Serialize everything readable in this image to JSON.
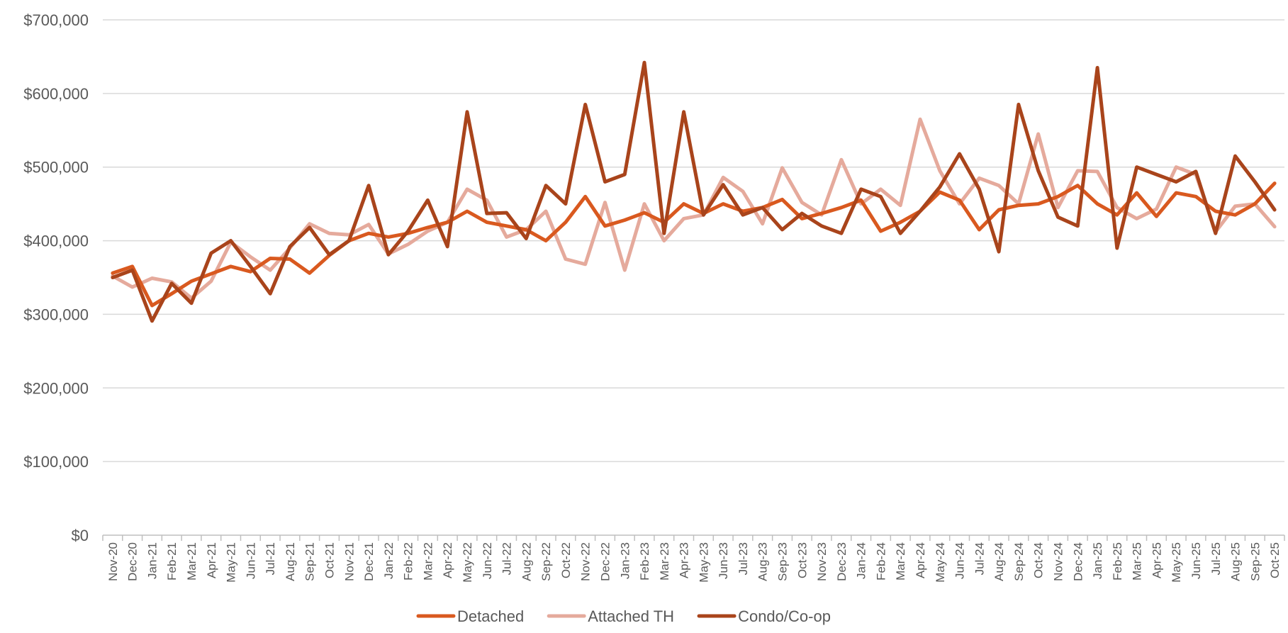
{
  "chart_data": {
    "type": "line",
    "title": "",
    "xlabel": "",
    "ylabel": "",
    "ylim": [
      0,
      700000
    ],
    "yticks": [
      0,
      100000,
      200000,
      300000,
      400000,
      500000,
      600000,
      700000
    ],
    "ytick_labels": [
      "$0",
      "$100,000",
      "$200,000",
      "$300,000",
      "$400,000",
      "$500,000",
      "$600,000",
      "$700,000"
    ],
    "grid": true,
    "legend_position": "bottom",
    "categories": [
      "Nov-20",
      "Dec-20",
      "Jan-21",
      "Feb-21",
      "Mar-21",
      "Apr-21",
      "May-21",
      "Jun-21",
      "Jul-21",
      "Aug-21",
      "Sep-21",
      "Oct-21",
      "Nov-21",
      "Dec-21",
      "Jan-22",
      "Feb-22",
      "Mar-22",
      "Apr-22",
      "May-22",
      "Jun-22",
      "Jul-22",
      "Aug-22",
      "Sep-22",
      "Oct-22",
      "Nov-22",
      "Dec-22",
      "Jan-23",
      "Feb-23",
      "Mar-23",
      "Apr-23",
      "May-23",
      "Jun-23",
      "Jul-23",
      "Aug-23",
      "Sep-23",
      "Oct-23",
      "Nov-23",
      "Dec-23",
      "Jan-24",
      "Feb-24",
      "Mar-24",
      "Apr-24",
      "May-24",
      "Jun-24",
      "Jul-24",
      "Aug-24",
      "Sep-24",
      "Oct-24",
      "Nov-24",
      "Dec-24",
      "Jan-25",
      "Feb-25",
      "Mar-25",
      "Apr-25",
      "May-25",
      "Jun-25",
      "Jul-25",
      "Aug-25",
      "Sep-25",
      "Oct-25"
    ],
    "series": [
      {
        "name": "Detached",
        "color": "#d9591f",
        "values": [
          356000,
          365000,
          312000,
          328000,
          345000,
          355000,
          365000,
          358000,
          376000,
          375000,
          356000,
          380000,
          400000,
          410000,
          405000,
          410000,
          418000,
          425000,
          440000,
          425000,
          420000,
          415000,
          400000,
          425000,
          460000,
          420000,
          428000,
          438000,
          425000,
          450000,
          437000,
          450000,
          440000,
          445000,
          456000,
          430000,
          437000,
          445000,
          455000,
          413000,
          425000,
          440000,
          466000,
          455000,
          415000,
          442000,
          448000,
          450000,
          460000,
          475000,
          450000,
          435000,
          465000,
          433000,
          465000,
          460000,
          440000,
          435000,
          450000,
          478000
        ]
      },
      {
        "name": "Attached TH",
        "color": "#e5aa9c",
        "values": [
          352000,
          337000,
          349000,
          344000,
          322000,
          345000,
          398000,
          378000,
          360000,
          390000,
          423000,
          410000,
          408000,
          422000,
          382000,
          395000,
          413000,
          425000,
          470000,
          455000,
          405000,
          415000,
          440000,
          375000,
          368000,
          452000,
          360000,
          450000,
          400000,
          430000,
          435000,
          486000,
          467000,
          423000,
          499000,
          452000,
          435000,
          510000,
          450000,
          470000,
          448000,
          565000,
          495000,
          450000,
          485000,
          475000,
          450000,
          545000,
          445000,
          495000,
          494000,
          445000,
          430000,
          443000,
          500000,
          490000,
          412000,
          447000,
          450000,
          419000
        ]
      },
      {
        "name": "Condo/Co-op",
        "color": "#a9441b",
        "values": [
          350000,
          360000,
          291000,
          342000,
          315000,
          383000,
          400000,
          365000,
          328000,
          392000,
          418000,
          381000,
          400000,
          475000,
          381000,
          413000,
          455000,
          392000,
          575000,
          437000,
          438000,
          403000,
          475000,
          450000,
          585000,
          480000,
          490000,
          642000,
          410000,
          575000,
          435000,
          476000,
          435000,
          445000,
          415000,
          437000,
          420000,
          410000,
          470000,
          460000,
          410000,
          440000,
          473000,
          518000,
          470000,
          385000,
          585000,
          495000,
          432000,
          420000,
          635000,
          390000,
          500000,
          490000,
          480000,
          494000,
          410000,
          515000,
          480000,
          442000
        ]
      }
    ]
  }
}
